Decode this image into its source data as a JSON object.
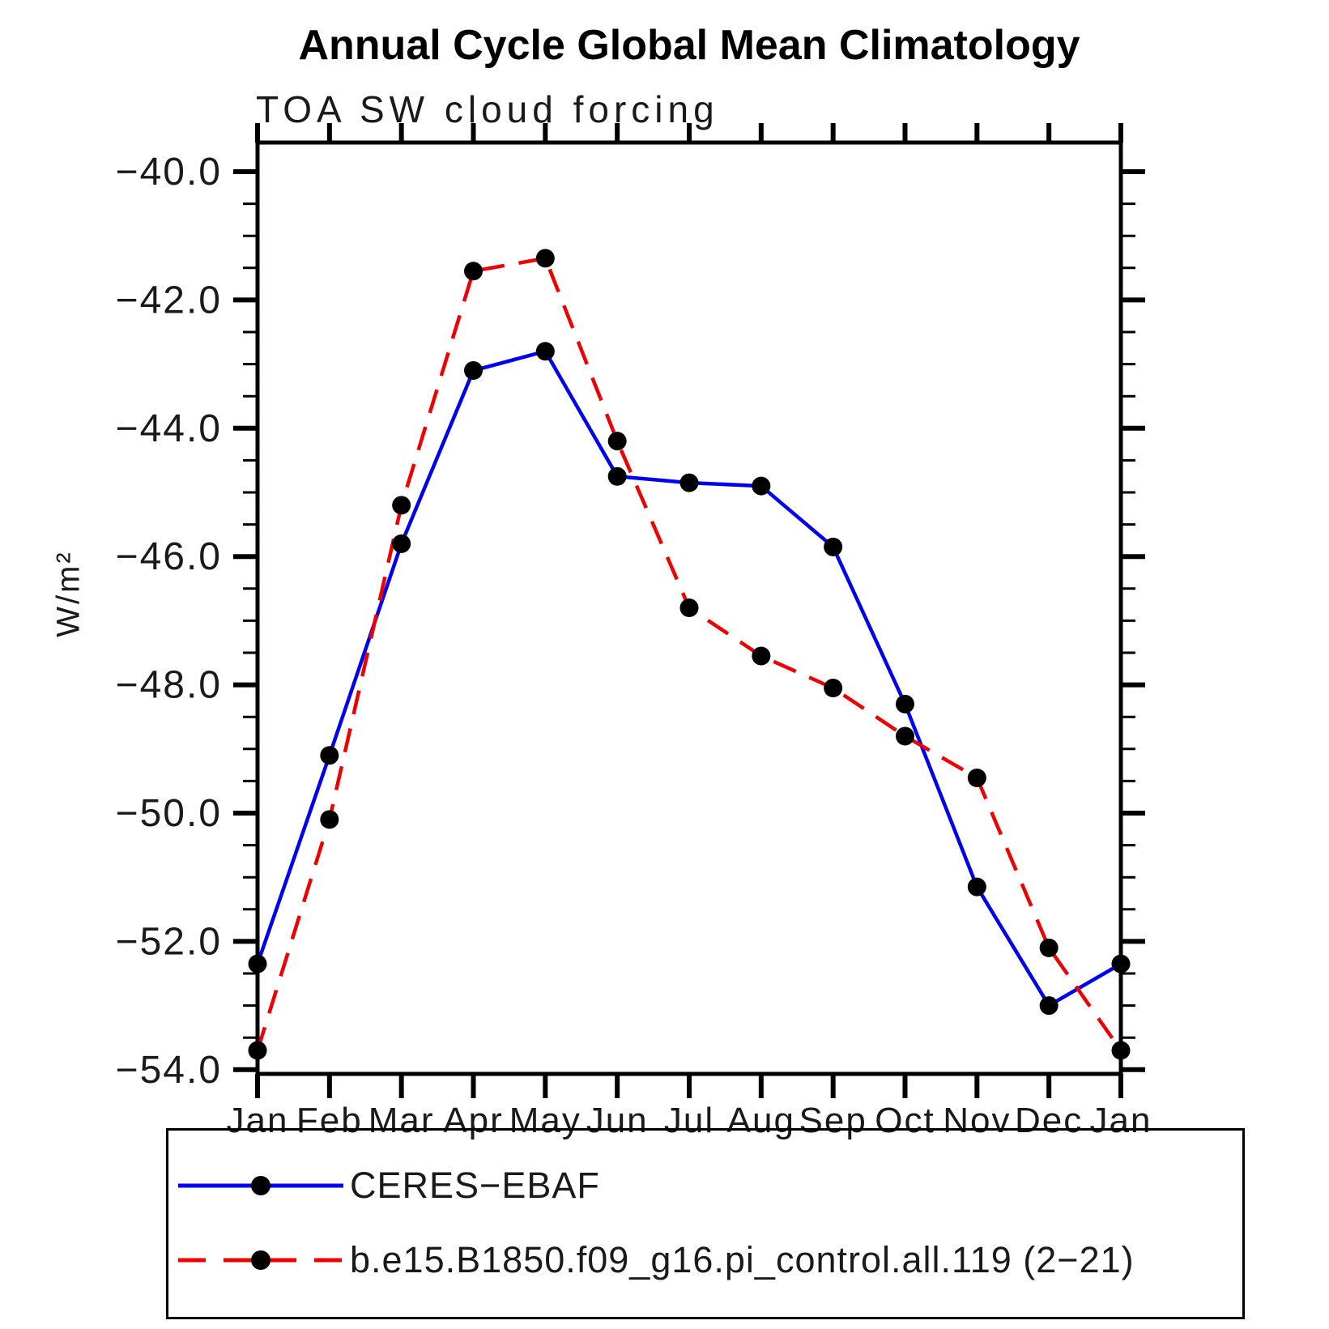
{
  "title": "Annual Cycle Global Mean Climatology",
  "subtitle": "TOA SW cloud forcing",
  "chart_data": {
    "type": "line",
    "title": "Annual Cycle Global Mean Climatology",
    "subtitle": "TOA SW cloud forcing",
    "xlabel": "",
    "ylabel": "W/m²",
    "x_categories": [
      "Jan",
      "Feb",
      "Mar",
      "Apr",
      "May",
      "Jun",
      "Jul",
      "Aug",
      "Sep",
      "Oct",
      "Nov",
      "Dec",
      "Jan"
    ],
    "ylim": [
      -54.05,
      -39.55
    ],
    "yticks_major": [
      -40,
      -42,
      -44,
      -46,
      -48,
      -50,
      -52,
      -54
    ],
    "ytick_labels": [
      "−40.0",
      "−42.0",
      "−44.0",
      "−46.0",
      "−48.0",
      "−50.0",
      "−52.0",
      "−54.0"
    ],
    "ytick_minor_step": 0.5,
    "grid": false,
    "legend_position": "bottom",
    "marker_color": "#000000",
    "series": [
      {
        "name": "CERES−EBAF",
        "color": "#0000ee",
        "style": "solid",
        "values": [
          -52.35,
          -49.1,
          -45.8,
          -43.1,
          -42.8,
          -44.75,
          -44.85,
          -44.9,
          -45.85,
          -48.3,
          -51.15,
          -53.0,
          -52.35
        ]
      },
      {
        "name": "b.e15.B1850.f09_g16.pi_control.all.119 (2−21)",
        "color": "#ee0000",
        "style": "dashed",
        "values": [
          -53.7,
          -50.1,
          -45.2,
          -41.55,
          -41.35,
          -44.2,
          -46.8,
          -47.55,
          -48.05,
          -48.8,
          -49.45,
          -52.1,
          -53.7
        ]
      }
    ]
  }
}
